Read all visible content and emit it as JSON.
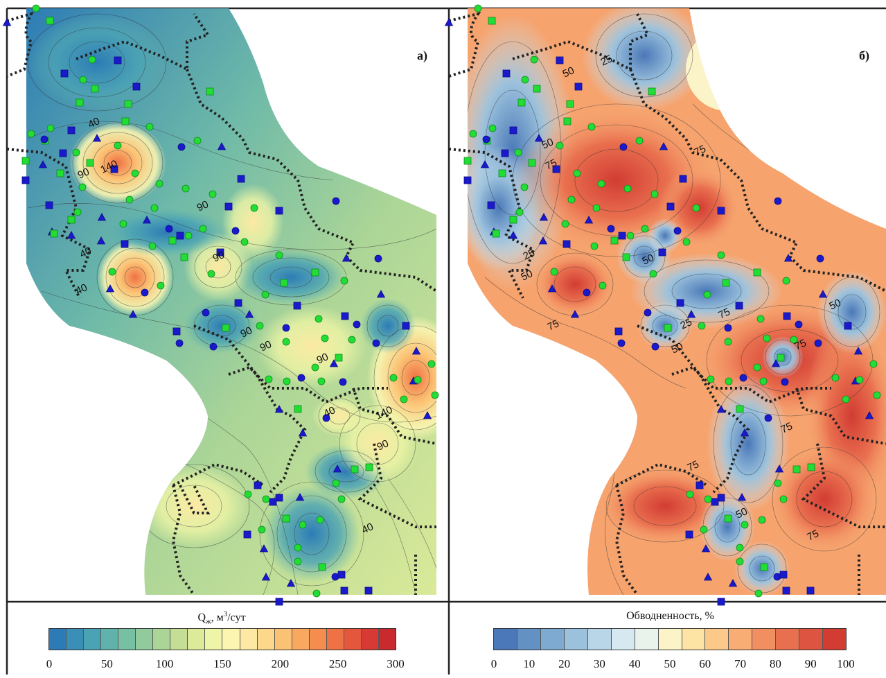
{
  "panels": [
    {
      "letter": "а)",
      "legend_title": "Q",
      "legend_title_sub": "ж",
      "legend_title_rest": ", м",
      "legend_title_sup": "3",
      "legend_title_end": "/сут",
      "scale_ticks": [
        "0",
        "50",
        "100",
        "150",
        "200",
        "250",
        "300"
      ],
      "contour_labels": [
        "40",
        "90",
        "140",
        "90",
        "40",
        "40",
        "90",
        "90",
        "90",
        "90",
        "140",
        "90",
        "40",
        "40"
      ],
      "colors": [
        "#2c7bb6",
        "#3a8fb7",
        "#4aa3b5",
        "#60b3ad",
        "#78c0a3",
        "#92cb9b",
        "#abd597",
        "#c4df95",
        "#dcea99",
        "#eef5a6",
        "#fbf5b1",
        "#fde9a3",
        "#fdd88b",
        "#fcc274",
        "#f9a85f",
        "#f58d4f",
        "#ef7244",
        "#e5573c",
        "#d73a34",
        "#c92a2e"
      ]
    },
    {
      "letter": "б)",
      "legend_title": "Обводненность, %",
      "scale_ticks": [
        "0",
        "10",
        "20",
        "30",
        "40",
        "50",
        "60",
        "70",
        "80",
        "90",
        "100"
      ],
      "contour_labels": [
        "50",
        "25",
        "75",
        "50",
        "75",
        "25",
        "50",
        "75",
        "50",
        "75",
        "25",
        "50",
        "75",
        "75",
        "75",
        "50",
        "75",
        "50"
      ],
      "colors": [
        "#4a78b8",
        "#6391c4",
        "#7ea9d0",
        "#9bc1dc",
        "#b9d6e8",
        "#d6e8f0",
        "#eaf2ec",
        "#fbf4c8",
        "#fde3a4",
        "#fcc98a",
        "#f8ad74",
        "#f28f60",
        "#e9704f",
        "#dd5540",
        "#d23c33"
      ]
    }
  ],
  "markers": {
    "circle": "circle-well",
    "square": "square-well",
    "triangle": "triangle-well"
  },
  "colors": {
    "green_marker": "#22dd33",
    "blue_marker": "#1a1acc",
    "boundary": "#222222"
  }
}
